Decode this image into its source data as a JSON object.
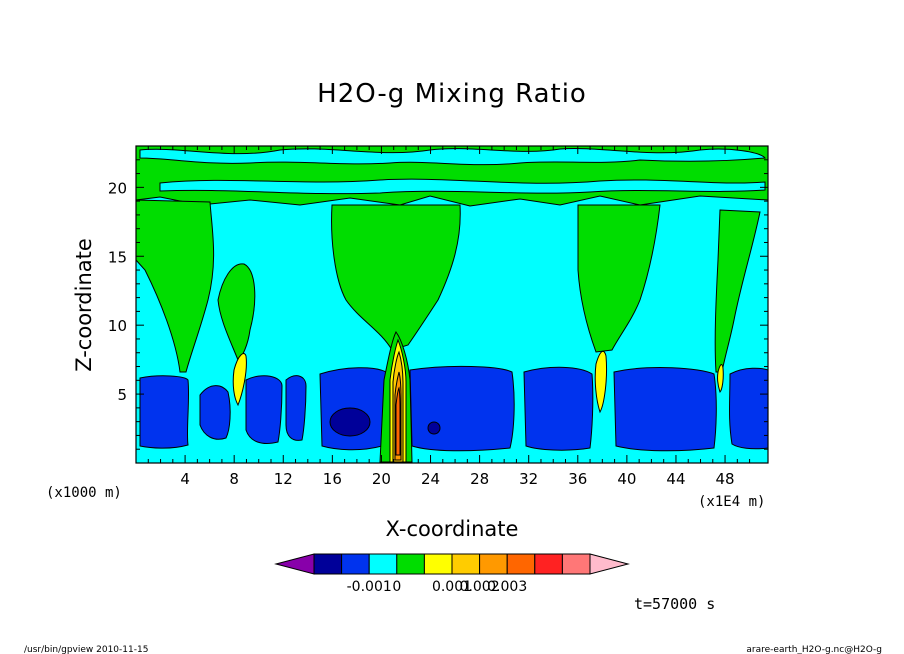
{
  "chart_data": {
    "type": "heatmap",
    "title": "H2O-g Mixing Ratio",
    "xlabel": "X-coordinate",
    "ylabel": "Z-coordinate",
    "x_unit_note": "(x1E4 m)",
    "y_unit_note": "(x1000 m)",
    "xlim": [
      0,
      51.5
    ],
    "ylim": [
      0,
      23
    ],
    "x_ticks": [
      "4",
      "8",
      "12",
      "16",
      "20",
      "24",
      "28",
      "32",
      "36",
      "40",
      "44",
      "48"
    ],
    "y_ticks": [
      "5",
      "10",
      "15",
      "20"
    ],
    "x_tick_values": [
      4,
      8,
      12,
      16,
      20,
      24,
      28,
      32,
      36,
      40,
      44,
      48
    ],
    "y_tick_values": [
      5,
      10,
      15,
      20
    ],
    "colorbar": {
      "labels": [
        "-0.001",
        "0",
        "0.001",
        "0.002",
        "0.003"
      ],
      "colors": [
        "#8800aa",
        "#000099",
        "#0033ee",
        "#00ffff",
        "#00dd00",
        "#ffff00",
        "#ffcc00",
        "#ff9900",
        "#ff6600",
        "#ff2222",
        "#ff7777",
        "#ffbbcc"
      ]
    },
    "fields": {
      "upper_band_green": [
        [
          0,
          23
        ],
        [
          51.5,
          23
        ],
        [
          51.5,
          18.5
        ],
        [
          0,
          18.5
        ]
      ],
      "cyan_background": "#00ffff"
    },
    "time_label": "t=57000 s"
  },
  "footer": {
    "left": "/usr/bin/gpview   2010-11-15",
    "right": "arare-earth_H2O-g.nc@H2O-g"
  }
}
